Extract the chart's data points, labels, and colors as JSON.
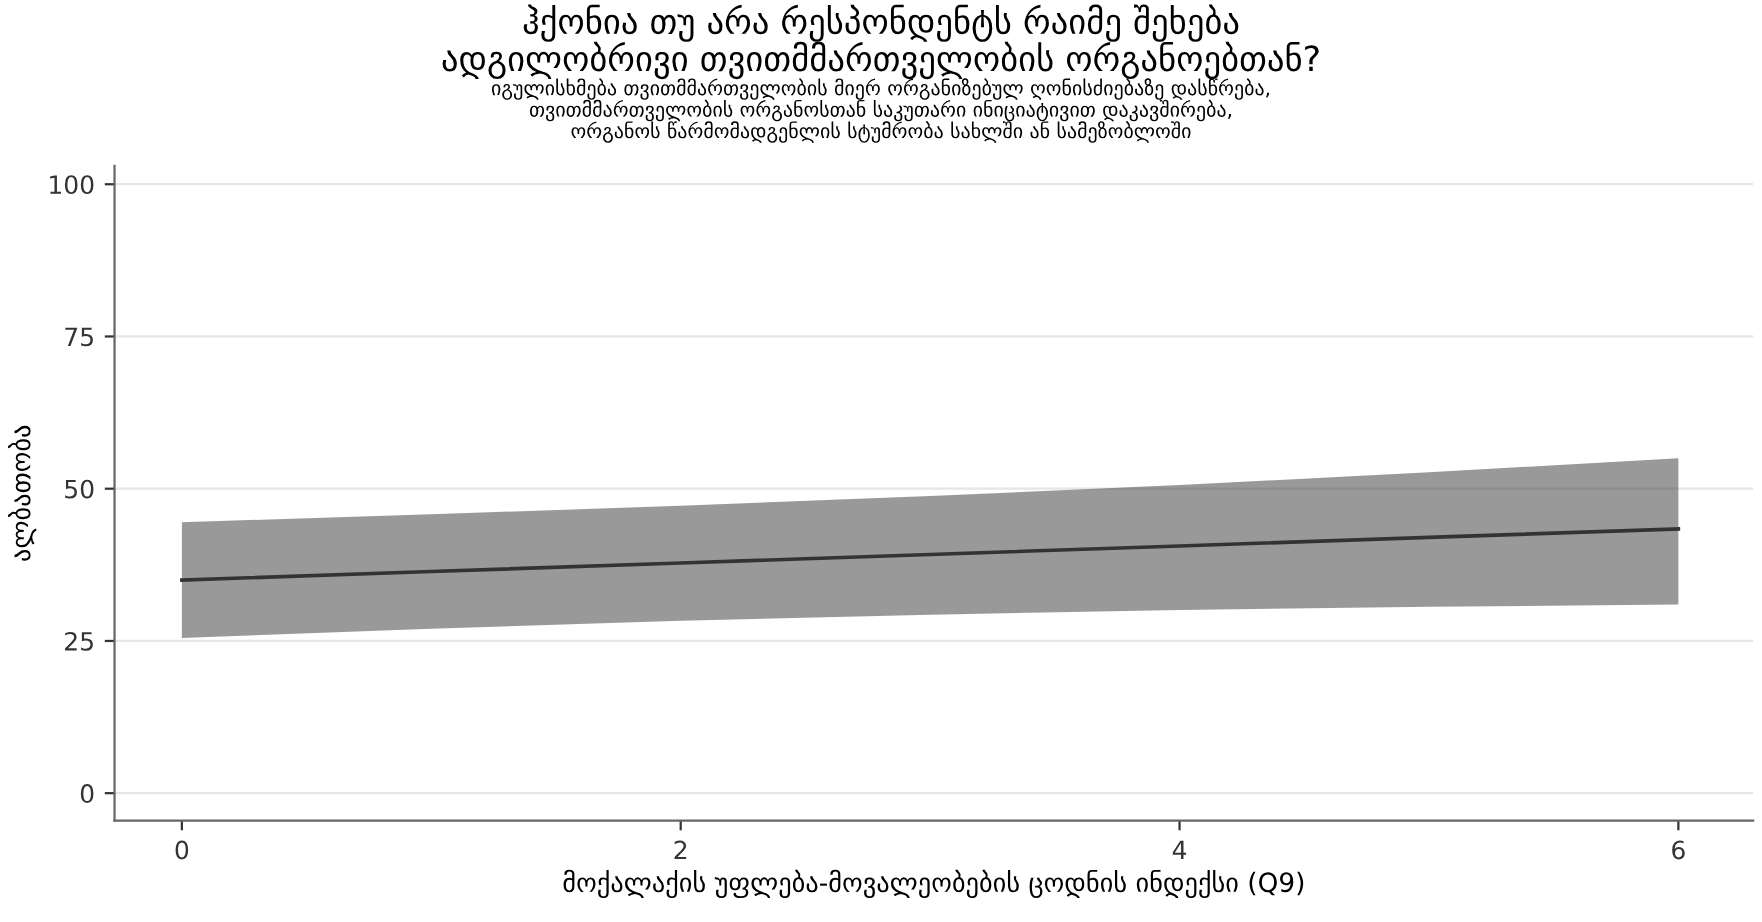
{
  "chart_data": {
    "type": "line",
    "title": "ჰქონია თუ არა რესპონდენტს რაიმე შეხება\nადგილობრივი თვითმმართველობის ორგანოებთან?",
    "subtitle": "იგულისხმება თვითმმართველობის მიერ ორგანიზებულ ღონისძიებაზე დასწრება,\nთვითმმართველობის ორგანოსთან საკუთარი ინიციატივით დაკავშირება,\nორგანოს წარმომადგენლის სტუმრობა სახლში ან სამეზობლოში",
    "xlabel": "მოქალაქის უფლება-მოვალეობების ცოდნის ინდექსი (Q9)",
    "ylabel": "ალბათობა",
    "x": [
      0,
      1,
      2,
      3,
      4,
      5,
      6
    ],
    "series": [
      {
        "color": "#333333",
        "values": [
          35,
          36.4,
          37.8,
          39.2,
          40.6,
          42,
          43.4
        ],
        "lower": [
          25.5,
          27,
          28.3,
          29.3,
          30.1,
          30.6,
          31
        ],
        "upper": [
          44.5,
          45.8,
          47.2,
          48.8,
          50.6,
          52.7,
          55
        ]
      }
    ],
    "xlim": [
      -0.27,
      6.3
    ],
    "ylim": [
      -4.5,
      103
    ],
    "xticks": [
      0,
      2,
      4,
      6
    ],
    "yticks": [
      0,
      25,
      50,
      75,
      100
    ],
    "grid": "y",
    "legend": false,
    "marker": "none",
    "line_style": "solid"
  }
}
